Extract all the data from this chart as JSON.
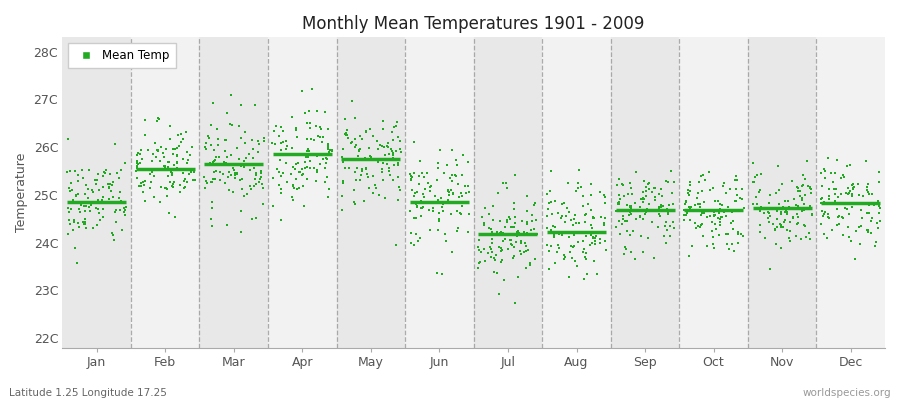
{
  "title": "Monthly Mean Temperatures 1901 - 2009",
  "ylabel": "Temperature",
  "subtitle": "Latitude 1.25 Longitude 17.25",
  "watermark": "worldspecies.org",
  "legend_label": "Mean Temp",
  "months": [
    "Jan",
    "Feb",
    "Mar",
    "Apr",
    "May",
    "Jun",
    "Jul",
    "Aug",
    "Sep",
    "Oct",
    "Nov",
    "Dec"
  ],
  "ylim": [
    21.8,
    28.3
  ],
  "yticks": [
    22,
    23,
    24,
    25,
    26,
    27,
    28
  ],
  "ytick_labels": [
    "22C",
    "23C",
    "24C",
    "25C",
    "26C",
    "27C",
    "28C"
  ],
  "dot_color": "#22AA22",
  "median_color": "#22AA22",
  "bg_color_odd": "#E8E8E8",
  "bg_color_even": "#F2F2F2",
  "n_years": 109,
  "seed": 42,
  "monthly_means": [
    24.85,
    25.55,
    25.65,
    25.85,
    25.75,
    24.85,
    24.18,
    24.22,
    24.68,
    24.68,
    24.72,
    24.82
  ],
  "monthly_stds": [
    0.48,
    0.48,
    0.52,
    0.52,
    0.52,
    0.52,
    0.5,
    0.5,
    0.45,
    0.45,
    0.45,
    0.45
  ]
}
